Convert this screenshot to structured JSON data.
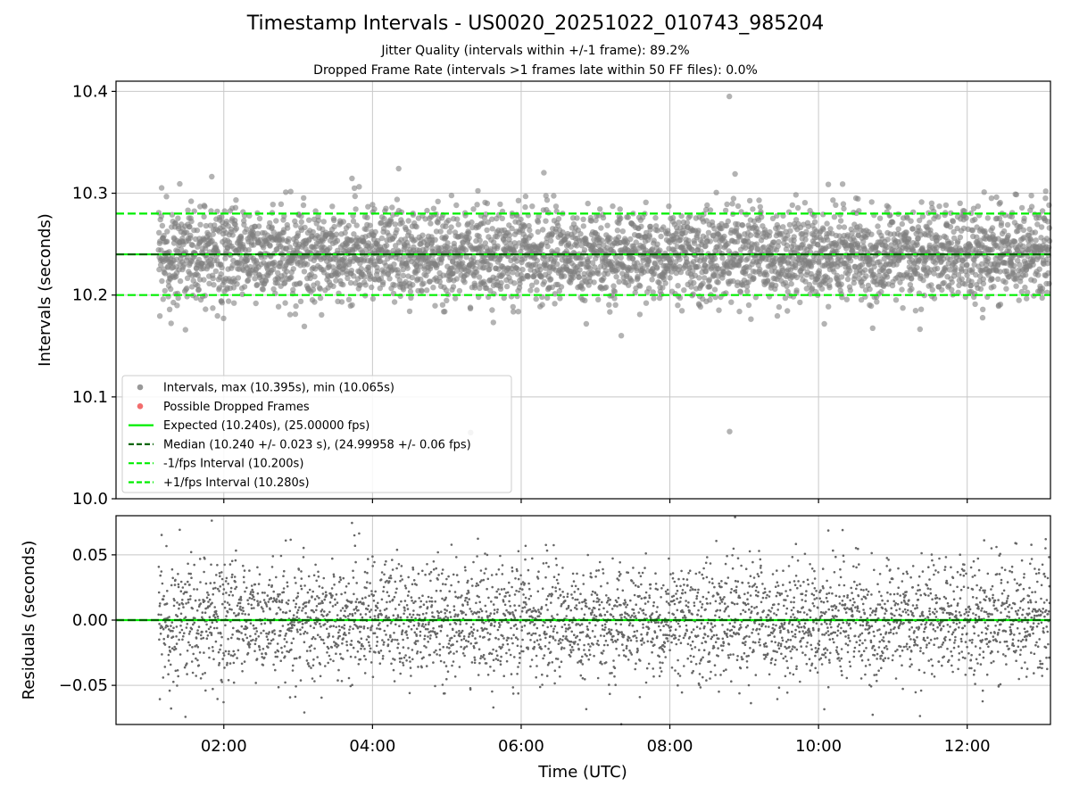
{
  "chart_data": {
    "title": "Timestamp Intervals - US0020_20251022_010743_985204",
    "subtitle_lines": [
      "Jitter Quality (intervals within +/-1 frame): 89.2%",
      "Dropped Frame Rate (intervals >1 frames late within 50 FF files): 0.0%"
    ],
    "xlabel": "Time (UTC)",
    "x_ticks": [
      {
        "hour": 2,
        "label": "02:00"
      },
      {
        "hour": 4,
        "label": "04:00"
      },
      {
        "hour": 6,
        "label": "06:00"
      },
      {
        "hour": 8,
        "label": "08:00"
      },
      {
        "hour": 10,
        "label": "10:00"
      },
      {
        "hour": 12,
        "label": "12:00"
      }
    ],
    "xlim_hours": [
      0.55,
      13.12
    ],
    "data_x_range_hours": [
      1.12,
      13.12
    ],
    "panels": [
      {
        "id": "intervals",
        "type": "scatter",
        "ylabel": "Intervals (seconds)",
        "ylim": [
          10.0,
          10.41
        ],
        "y_ticks": [
          {
            "value": 10.0,
            "label": "10.0"
          },
          {
            "value": 10.1,
            "label": "10.1"
          },
          {
            "value": 10.2,
            "label": "10.2"
          },
          {
            "value": 10.3,
            "label": "10.3"
          },
          {
            "value": 10.4,
            "label": "10.4"
          }
        ],
        "reference_lines": [
          {
            "name": "expected",
            "value": 10.24,
            "color": "#00ee00",
            "style": "solid"
          },
          {
            "name": "median",
            "value": 10.24,
            "color": "#006400",
            "style": "dashed"
          },
          {
            "name": "minus-1fps",
            "value": 10.2,
            "color": "#00ee00",
            "style": "dashed"
          },
          {
            "name": "plus-1fps",
            "value": 10.28,
            "color": "#00ee00",
            "style": "dashed"
          }
        ],
        "series": [
          {
            "name": "Intervals",
            "color": "#808080",
            "center": 10.24,
            "stdev": 0.023,
            "max": 10.395,
            "min": 10.065,
            "count": 3900
          },
          {
            "name": "Possible Dropped Frames",
            "color": "#ff4d4d",
            "count": 0
          }
        ],
        "legend": {
          "location": "lower-left",
          "entries": [
            {
              "marker": "dot",
              "color": "#999999",
              "label": "Intervals, max (10.395s), min (10.065s)"
            },
            {
              "marker": "dot",
              "color": "#f26d6d",
              "label": "Possible Dropped Frames"
            },
            {
              "marker": "solid",
              "color": "#00ee00",
              "label": "Expected (10.240s), (25.00000 fps)"
            },
            {
              "marker": "dashed",
              "color": "#006400",
              "label": "Median (10.240 +/- 0.023 s), (24.99958 +/- 0.06 fps)"
            },
            {
              "marker": "dashed",
              "color": "#00ee00",
              "label": "-1/fps Interval (10.200s)"
            },
            {
              "marker": "dashed",
              "color": "#00ee00",
              "label": "+1/fps Interval (10.280s)"
            }
          ]
        }
      },
      {
        "id": "residuals",
        "type": "scatter",
        "ylabel": "Residuals (seconds)",
        "ylim": [
          -0.08,
          0.08
        ],
        "y_ticks": [
          {
            "value": -0.05,
            "label": "−0.05"
          },
          {
            "value": 0.0,
            "label": "0.00"
          },
          {
            "value": 0.05,
            "label": "0.05"
          }
        ],
        "reference_lines": [
          {
            "name": "zero",
            "value": 0.0,
            "color": "#00ee00",
            "style": "solid"
          },
          {
            "name": "zero-median",
            "value": 0.0,
            "color": "#006400",
            "style": "dashed"
          }
        ],
        "series": [
          {
            "name": "Residuals",
            "color": "#666666",
            "center": 0.0,
            "stdev": 0.028,
            "count": 3900
          }
        ]
      }
    ]
  }
}
